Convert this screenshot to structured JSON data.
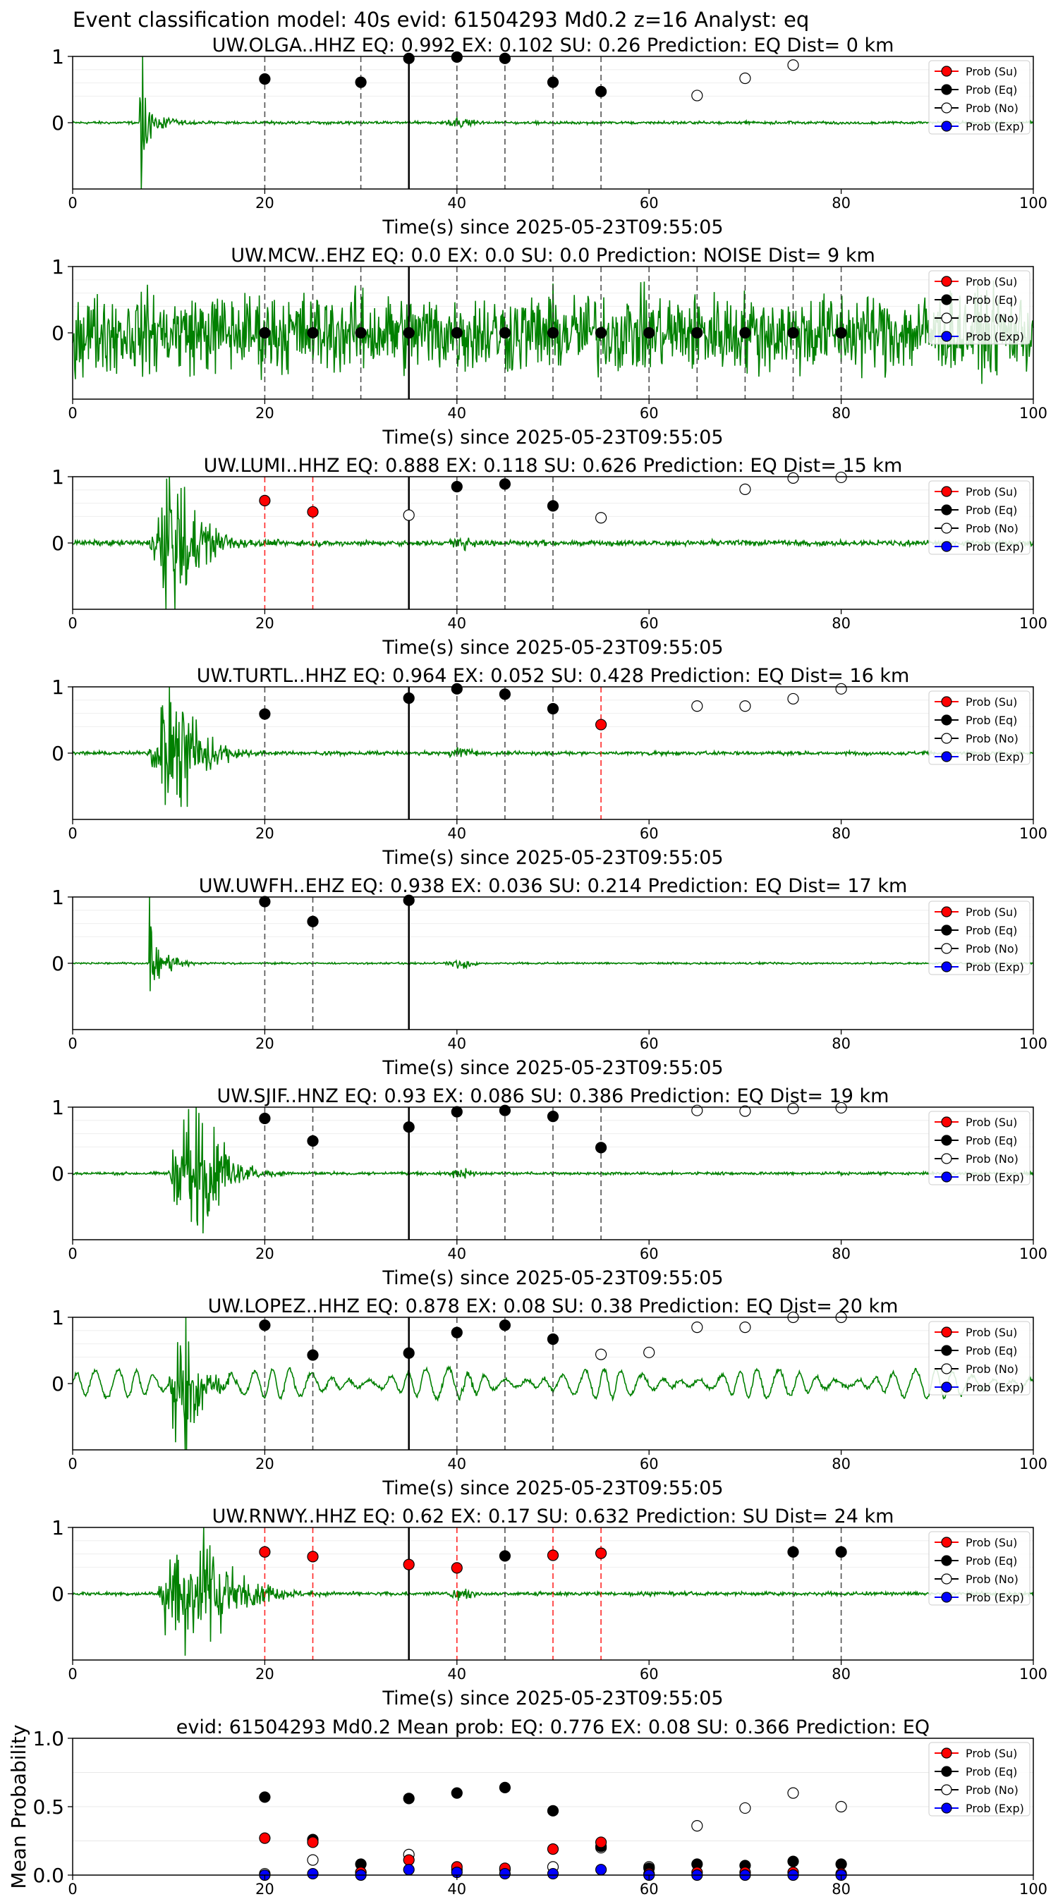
{
  "suptitle": "Event classification model: 40s evid: 61504293 Md0.2 z=16 Analyst: eq",
  "legend_labels": [
    "Prob (Su)",
    "Prob (Eq)",
    "Prob (No)",
    "Prob (Exp)"
  ],
  "colors": {
    "su": "#ff0000",
    "eq": "#000000",
    "no": "#ffffff",
    "exp": "#0000ff",
    "trace": "#008000",
    "su_line": "#ff0000",
    "eq_line": "#333333"
  },
  "chart_data": [
    {
      "type": "line",
      "station": "UW.OLGA..HHZ",
      "title": "UW.OLGA..HHZ   EQ: 0.992  EX: 0.102  SU: 0.26   Prediction: EQ    Dist= 0 km",
      "xlabel": "Time(s) since 2025-05-23T09:55:05",
      "xlim": [
        0,
        100
      ],
      "ylim": [
        -1,
        1
      ],
      "xticks": [
        "0",
        "20",
        "40",
        "60",
        "80",
        "100"
      ],
      "yticks": [
        "1",
        "0"
      ],
      "origin_time": 35,
      "arrival": 7,
      "trace_style": "spike",
      "noise_level": 0.03,
      "windows": [
        {
          "t": 20,
          "cls": "eq"
        },
        {
          "t": 30,
          "cls": "eq"
        },
        {
          "t": 40,
          "cls": "eq"
        },
        {
          "t": 45,
          "cls": "eq"
        },
        {
          "t": 50,
          "cls": "eq"
        },
        {
          "t": 55,
          "cls": "eq"
        }
      ],
      "points": [
        {
          "x": 20,
          "y": 0.66,
          "cls": "eq"
        },
        {
          "x": 30,
          "y": 0.61,
          "cls": "eq"
        },
        {
          "x": 35,
          "y": 0.97,
          "cls": "eq"
        },
        {
          "x": 40,
          "y": 0.99,
          "cls": "eq"
        },
        {
          "x": 45,
          "y": 0.97,
          "cls": "eq"
        },
        {
          "x": 50,
          "y": 0.61,
          "cls": "eq"
        },
        {
          "x": 55,
          "y": 0.47,
          "cls": "eq"
        },
        {
          "x": 65,
          "y": 0.41,
          "cls": "no"
        },
        {
          "x": 70,
          "y": 0.67,
          "cls": "no"
        },
        {
          "x": 75,
          "y": 0.87,
          "cls": "no"
        }
      ]
    },
    {
      "type": "line",
      "station": "UW.MCW..EHZ",
      "title": "UW.MCW..EHZ   EQ: 0.0  EX: 0.0  SU: 0.0   Prediction: NOISE    Dist= 9 km",
      "xlabel": "Time(s) since 2025-05-23T09:55:05",
      "xlim": [
        0,
        100
      ],
      "ylim": [
        -1,
        1
      ],
      "xticks": [
        "0",
        "20",
        "40",
        "60",
        "80",
        "100"
      ],
      "yticks": [
        "1",
        "0"
      ],
      "origin_time": 35,
      "arrival": null,
      "trace_style": "noise",
      "noise_level": 0.55,
      "windows": [
        {
          "t": 20,
          "cls": "eq"
        },
        {
          "t": 25,
          "cls": "eq"
        },
        {
          "t": 30,
          "cls": "eq"
        },
        {
          "t": 40,
          "cls": "eq"
        },
        {
          "t": 45,
          "cls": "eq"
        },
        {
          "t": 50,
          "cls": "eq"
        },
        {
          "t": 55,
          "cls": "eq"
        },
        {
          "t": 60,
          "cls": "eq"
        },
        {
          "t": 65,
          "cls": "eq"
        },
        {
          "t": 70,
          "cls": "eq"
        },
        {
          "t": 75,
          "cls": "eq"
        },
        {
          "t": 80,
          "cls": "eq"
        }
      ],
      "points": [
        {
          "x": 20,
          "y": 0.0,
          "cls": "eq"
        },
        {
          "x": 25,
          "y": 0.0,
          "cls": "eq"
        },
        {
          "x": 30,
          "y": 0.0,
          "cls": "eq"
        },
        {
          "x": 35,
          "y": 0.0,
          "cls": "eq"
        },
        {
          "x": 40,
          "y": 0.0,
          "cls": "eq"
        },
        {
          "x": 45,
          "y": 0.0,
          "cls": "eq"
        },
        {
          "x": 50,
          "y": 0.0,
          "cls": "eq"
        },
        {
          "x": 55,
          "y": 0.0,
          "cls": "eq"
        },
        {
          "x": 60,
          "y": 0.0,
          "cls": "eq"
        },
        {
          "x": 65,
          "y": 0.0,
          "cls": "eq"
        },
        {
          "x": 70,
          "y": 0.0,
          "cls": "eq"
        },
        {
          "x": 75,
          "y": 0.0,
          "cls": "eq"
        },
        {
          "x": 80,
          "y": 0.0,
          "cls": "eq"
        }
      ]
    },
    {
      "type": "line",
      "station": "UW.LUMI..HHZ",
      "title": "UW.LUMI..HHZ   EQ: 0.888  EX: 0.118  SU: 0.626   Prediction: EQ    Dist= 15 km",
      "xlabel": "Time(s) since 2025-05-23T09:55:05",
      "xlim": [
        0,
        100
      ],
      "ylim": [
        -1,
        1
      ],
      "xticks": [
        "0",
        "20",
        "40",
        "60",
        "80",
        "100"
      ],
      "yticks": [
        "1",
        "0"
      ],
      "origin_time": 35,
      "arrival": 8,
      "trace_style": "burst",
      "noise_level": 0.06,
      "windows": [
        {
          "t": 20,
          "cls": "su"
        },
        {
          "t": 25,
          "cls": "su"
        },
        {
          "t": 40,
          "cls": "eq"
        },
        {
          "t": 45,
          "cls": "eq"
        },
        {
          "t": 50,
          "cls": "eq"
        }
      ],
      "points": [
        {
          "x": 20,
          "y": 0.64,
          "cls": "su"
        },
        {
          "x": 25,
          "y": 0.47,
          "cls": "su"
        },
        {
          "x": 35,
          "y": 0.42,
          "cls": "no"
        },
        {
          "x": 40,
          "y": 0.85,
          "cls": "eq"
        },
        {
          "x": 45,
          "y": 0.89,
          "cls": "eq"
        },
        {
          "x": 50,
          "y": 0.56,
          "cls": "eq"
        },
        {
          "x": 55,
          "y": 0.38,
          "cls": "no"
        },
        {
          "x": 70,
          "y": 0.81,
          "cls": "no"
        },
        {
          "x": 75,
          "y": 0.98,
          "cls": "no"
        },
        {
          "x": 80,
          "y": 0.99,
          "cls": "no"
        }
      ]
    },
    {
      "type": "line",
      "station": "UW.TURTL..HHZ",
      "title": "UW.TURTL..HHZ   EQ: 0.964  EX: 0.052  SU: 0.428   Prediction: EQ    Dist= 16 km",
      "xlabel": "Time(s) since 2025-05-23T09:55:05",
      "xlim": [
        0,
        100
      ],
      "ylim": [
        -1,
        1
      ],
      "xticks": [
        "0",
        "20",
        "40",
        "60",
        "80",
        "100"
      ],
      "yticks": [
        "1",
        "0"
      ],
      "origin_time": 35,
      "arrival": 8,
      "trace_style": "burst",
      "noise_level": 0.04,
      "windows": [
        {
          "t": 20,
          "cls": "eq"
        },
        {
          "t": 40,
          "cls": "eq"
        },
        {
          "t": 45,
          "cls": "eq"
        },
        {
          "t": 50,
          "cls": "eq"
        },
        {
          "t": 55,
          "cls": "su"
        }
      ],
      "points": [
        {
          "x": 20,
          "y": 0.59,
          "cls": "eq"
        },
        {
          "x": 35,
          "y": 0.83,
          "cls": "eq"
        },
        {
          "x": 40,
          "y": 0.97,
          "cls": "eq"
        },
        {
          "x": 45,
          "y": 0.89,
          "cls": "eq"
        },
        {
          "x": 50,
          "y": 0.67,
          "cls": "eq"
        },
        {
          "x": 55,
          "y": 0.43,
          "cls": "su"
        },
        {
          "x": 65,
          "y": 0.71,
          "cls": "no"
        },
        {
          "x": 70,
          "y": 0.71,
          "cls": "no"
        },
        {
          "x": 75,
          "y": 0.82,
          "cls": "no"
        },
        {
          "x": 80,
          "y": 0.97,
          "cls": "no"
        }
      ]
    },
    {
      "type": "line",
      "station": "UW.UWFH..EHZ",
      "title": "UW.UWFH..EHZ   EQ: 0.938  EX: 0.036  SU: 0.214   Prediction: EQ    Dist= 17 km",
      "xlabel": "Time(s) since 2025-05-23T09:55:05",
      "xlim": [
        0,
        100
      ],
      "ylim": [
        -1,
        1
      ],
      "xticks": [
        "0",
        "20",
        "40",
        "60",
        "80",
        "100"
      ],
      "yticks": [
        "1",
        "0"
      ],
      "origin_time": 35,
      "arrival": 8,
      "trace_style": "spike",
      "noise_level": 0.02,
      "windows": [
        {
          "t": 20,
          "cls": "eq"
        },
        {
          "t": 25,
          "cls": "eq"
        }
      ],
      "points": [
        {
          "x": 20,
          "y": 0.93,
          "cls": "eq"
        },
        {
          "x": 25,
          "y": 0.63,
          "cls": "eq"
        },
        {
          "x": 35,
          "y": 0.95,
          "cls": "eq"
        }
      ]
    },
    {
      "type": "line",
      "station": "UW.SJIF..HNZ",
      "title": "UW.SJIF..HNZ   EQ: 0.93  EX: 0.086  SU: 0.386   Prediction: EQ    Dist= 19 km",
      "xlabel": "Time(s) since 2025-05-23T09:55:05",
      "xlim": [
        0,
        100
      ],
      "ylim": [
        -1,
        1
      ],
      "xticks": [
        "0",
        "20",
        "40",
        "60",
        "80",
        "100"
      ],
      "yticks": [
        "1",
        "0"
      ],
      "origin_time": 35,
      "arrival": 10,
      "trace_style": "burst",
      "noise_level": 0.03,
      "windows": [
        {
          "t": 20,
          "cls": "eq"
        },
        {
          "t": 25,
          "cls": "eq"
        },
        {
          "t": 40,
          "cls": "eq"
        },
        {
          "t": 45,
          "cls": "eq"
        },
        {
          "t": 50,
          "cls": "eq"
        },
        {
          "t": 55,
          "cls": "eq"
        }
      ],
      "points": [
        {
          "x": 20,
          "y": 0.83,
          "cls": "eq"
        },
        {
          "x": 25,
          "y": 0.49,
          "cls": "eq"
        },
        {
          "x": 35,
          "y": 0.7,
          "cls": "eq"
        },
        {
          "x": 40,
          "y": 0.93,
          "cls": "eq"
        },
        {
          "x": 45,
          "y": 0.95,
          "cls": "eq"
        },
        {
          "x": 50,
          "y": 0.86,
          "cls": "eq"
        },
        {
          "x": 55,
          "y": 0.39,
          "cls": "eq"
        },
        {
          "x": 65,
          "y": 0.95,
          "cls": "no"
        },
        {
          "x": 70,
          "y": 0.94,
          "cls": "no"
        },
        {
          "x": 75,
          "y": 0.98,
          "cls": "no"
        },
        {
          "x": 80,
          "y": 0.99,
          "cls": "no"
        }
      ]
    },
    {
      "type": "line",
      "station": "UW.LOPEZ..HHZ",
      "title": "UW.LOPEZ..HHZ   EQ: 0.878  EX: 0.08  SU: 0.38   Prediction: EQ    Dist= 20 km",
      "xlabel": "Time(s) since 2025-05-23T09:55:05",
      "xlim": [
        0,
        100
      ],
      "ylim": [
        -1,
        1
      ],
      "xticks": [
        "0",
        "20",
        "40",
        "60",
        "80",
        "100"
      ],
      "yticks": [
        "1",
        "0"
      ],
      "origin_time": 35,
      "arrival": 10,
      "trace_style": "wavy",
      "noise_level": 0.2,
      "windows": [
        {
          "t": 20,
          "cls": "eq"
        },
        {
          "t": 25,
          "cls": "eq"
        },
        {
          "t": 40,
          "cls": "eq"
        },
        {
          "t": 45,
          "cls": "eq"
        },
        {
          "t": 50,
          "cls": "eq"
        }
      ],
      "points": [
        {
          "x": 20,
          "y": 0.88,
          "cls": "eq"
        },
        {
          "x": 25,
          "y": 0.43,
          "cls": "eq"
        },
        {
          "x": 35,
          "y": 0.46,
          "cls": "eq"
        },
        {
          "x": 40,
          "y": 0.77,
          "cls": "eq"
        },
        {
          "x": 45,
          "y": 0.88,
          "cls": "eq"
        },
        {
          "x": 50,
          "y": 0.67,
          "cls": "eq"
        },
        {
          "x": 55,
          "y": 0.44,
          "cls": "no"
        },
        {
          "x": 60,
          "y": 0.47,
          "cls": "no"
        },
        {
          "x": 65,
          "y": 0.85,
          "cls": "no"
        },
        {
          "x": 70,
          "y": 0.85,
          "cls": "no"
        },
        {
          "x": 75,
          "y": 1.0,
          "cls": "no"
        },
        {
          "x": 80,
          "y": 1.0,
          "cls": "no"
        }
      ]
    },
    {
      "type": "line",
      "station": "UW.RNWY..HHZ",
      "title": "UW.RNWY..HHZ   EQ: 0.62  EX: 0.17  SU: 0.632   Prediction: SU    Dist= 24 km",
      "xlabel": "Time(s) since 2025-05-23T09:55:05",
      "xlim": [
        0,
        100
      ],
      "ylim": [
        -1,
        1
      ],
      "xticks": [
        "0",
        "20",
        "40",
        "60",
        "80",
        "100"
      ],
      "yticks": [
        "1",
        "0"
      ],
      "origin_time": 35,
      "arrival": 9,
      "trace_style": "long",
      "noise_level": 0.04,
      "windows": [
        {
          "t": 20,
          "cls": "su"
        },
        {
          "t": 25,
          "cls": "su"
        },
        {
          "t": 40,
          "cls": "su"
        },
        {
          "t": 45,
          "cls": "eq"
        },
        {
          "t": 50,
          "cls": "su"
        },
        {
          "t": 55,
          "cls": "su"
        },
        {
          "t": 75,
          "cls": "eq"
        },
        {
          "t": 80,
          "cls": "eq"
        }
      ],
      "points": [
        {
          "x": 20,
          "y": 0.63,
          "cls": "su"
        },
        {
          "x": 25,
          "y": 0.56,
          "cls": "su"
        },
        {
          "x": 35,
          "y": 0.44,
          "cls": "su"
        },
        {
          "x": 40,
          "y": 0.39,
          "cls": "su"
        },
        {
          "x": 45,
          "y": 0.57,
          "cls": "eq"
        },
        {
          "x": 50,
          "y": 0.58,
          "cls": "su"
        },
        {
          "x": 55,
          "y": 0.61,
          "cls": "su"
        },
        {
          "x": 75,
          "y": 0.63,
          "cls": "eq"
        },
        {
          "x": 80,
          "y": 0.63,
          "cls": "eq"
        }
      ]
    },
    {
      "type": "scatter",
      "station": "mean",
      "title": "evid: 61504293  Md0.2   Mean prob:   EQ: 0.776  EX: 0.08  SU: 0.366   Prediction: EQ",
      "ylabel": "Mean Probability",
      "xlim": [
        0,
        100
      ],
      "ylim": [
        0,
        1
      ],
      "xticks": [
        "0",
        "20",
        "40",
        "60",
        "80",
        "100"
      ],
      "yticks": [
        "1.0",
        "0.5",
        "0.0"
      ],
      "series": [
        {
          "name": "Prob (Su)",
          "cls": "su",
          "x": [
            20,
            25,
            30,
            35,
            40,
            45,
            50,
            55,
            60,
            65,
            70,
            75,
            80
          ],
          "y": [
            0.27,
            0.24,
            0.02,
            0.11,
            0.06,
            0.05,
            0.19,
            0.24,
            0.01,
            0.02,
            0.02,
            0.02,
            0.01
          ]
        },
        {
          "name": "Prob (Eq)",
          "cls": "eq",
          "x": [
            20,
            25,
            30,
            35,
            40,
            45,
            50,
            55,
            60,
            65,
            70,
            75,
            80
          ],
          "y": [
            0.57,
            0.26,
            0.08,
            0.56,
            0.6,
            0.64,
            0.47,
            0.21,
            0.05,
            0.08,
            0.07,
            0.1,
            0.08
          ]
        },
        {
          "name": "Prob (No)",
          "cls": "no",
          "x": [
            20,
            25,
            30,
            35,
            40,
            45,
            50,
            55,
            60,
            65,
            70,
            75,
            80
          ],
          "y": [
            0.01,
            0.11,
            0.02,
            0.15,
            0.04,
            0.04,
            0.06,
            0.2,
            0.06,
            0.36,
            0.49,
            0.6,
            0.5
          ]
        },
        {
          "name": "Prob (Exp)",
          "cls": "exp",
          "x": [
            20,
            25,
            30,
            35,
            40,
            45,
            50,
            55,
            60,
            65,
            70,
            75,
            80
          ],
          "y": [
            0.0,
            0.01,
            0.0,
            0.04,
            0.02,
            0.01,
            0.01,
            0.04,
            0.0,
            0.0,
            0.0,
            0.0,
            0.0
          ]
        }
      ]
    }
  ]
}
